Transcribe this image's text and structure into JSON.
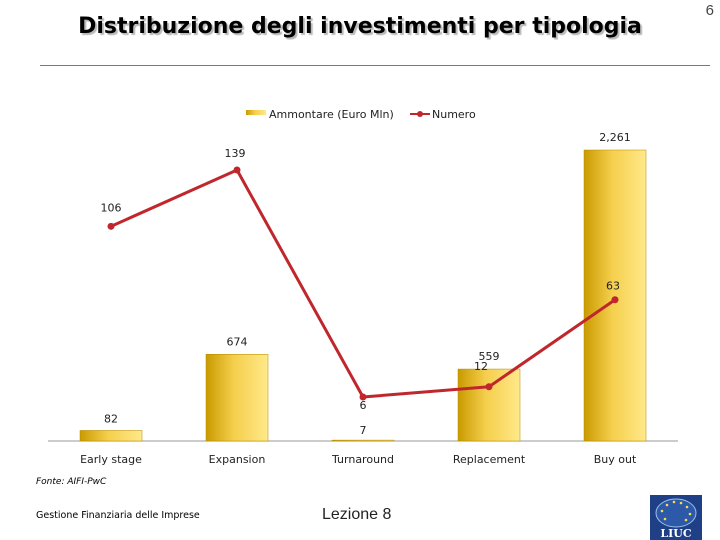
{
  "slide": {
    "title": "Distribuzione degli investimenti per tipologia",
    "page_number": "6",
    "source": "Fonte: AIFI-PwC",
    "footer_left": "Gestione Finanziaria delle Imprese",
    "footer_center": "Lezione 8",
    "logo_text": "LIUC"
  },
  "colors": {
    "bar_light": "#f7d25a",
    "bar_dark": "#c99a00",
    "line": "#c0272d",
    "axis": "#9a9a9a"
  },
  "chart_data": {
    "type": "bar+line",
    "title": "",
    "categories": [
      "Early stage",
      "Expansion",
      "Turnaround",
      "Replacement",
      "Buy out"
    ],
    "series": [
      {
        "name": "Ammontare (Euro Mln)",
        "type": "bar",
        "axis": "primary",
        "values": [
          82,
          674,
          7,
          559,
          2261
        ],
        "labels": [
          "82",
          "674",
          "7",
          "559",
          "2,261"
        ]
      },
      {
        "name": "Numero",
        "type": "line",
        "axis": "secondary",
        "values": [
          106,
          139,
          6,
          12,
          63
        ],
        "labels": [
          "106",
          "139",
          "6",
          "12",
          "63"
        ]
      }
    ],
    "legend_position": "top-center",
    "gridlines": false
  }
}
